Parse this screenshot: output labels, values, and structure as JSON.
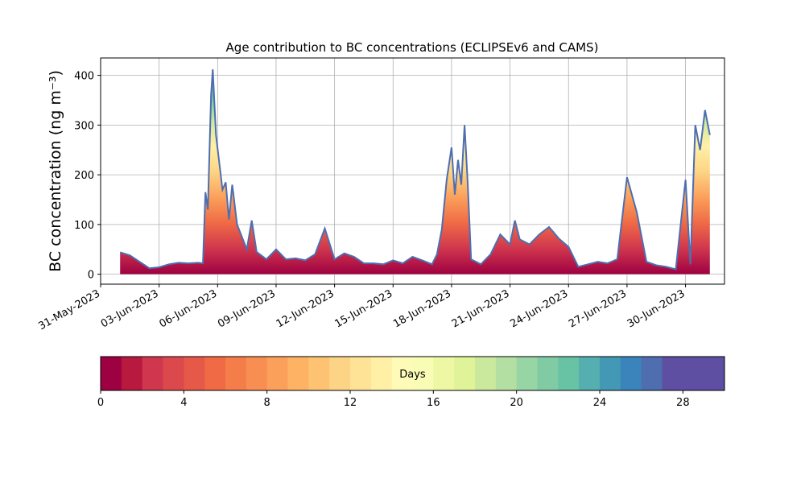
{
  "chart_data": {
    "type": "area",
    "title": "Age contribution to BC concentrations (ECLIPSEv6 and CAMS)",
    "ylabel": "BC concentration (ng m⁻³)",
    "xlabel": "",
    "x_start": "2023-06-01",
    "x_end": "2023-07-01",
    "xlim": [
      "2023-05-31",
      "2023-07-02"
    ],
    "ylim": [
      -20,
      435
    ],
    "y_ticks": [
      0,
      100,
      200,
      300,
      400
    ],
    "x_tick_labels": [
      "31-May-2023",
      "03-Jun-2023",
      "06-Jun-2023",
      "09-Jun-2023",
      "12-Jun-2023",
      "15-Jun-2023",
      "18-Jun-2023",
      "21-Jun-2023",
      "24-Jun-2023",
      "27-Jun-2023",
      "30-Jun-2023"
    ],
    "x_tick_dates": [
      "2023-05-31",
      "2023-06-03",
      "2023-06-06",
      "2023-06-09",
      "2023-06-12",
      "2023-06-15",
      "2023-06-18",
      "2023-06-21",
      "2023-06-24",
      "2023-06-27",
      "2023-06-30"
    ],
    "grid": true,
    "total_series": [
      [
        "2023-06-01",
        44
      ],
      [
        "2023-06-01T12",
        38
      ],
      [
        "2023-06-02",
        25
      ],
      [
        "2023-06-02T12",
        12
      ],
      [
        "2023-06-03",
        14
      ],
      [
        "2023-06-03T12",
        20
      ],
      [
        "2023-06-04",
        23
      ],
      [
        "2023-06-04T12",
        22
      ],
      [
        "2023-06-05",
        23
      ],
      [
        "2023-06-05T06",
        22
      ],
      [
        "2023-06-05T09",
        165
      ],
      [
        "2023-06-05T12",
        130
      ],
      [
        "2023-06-05T16",
        360
      ],
      [
        "2023-06-05T18",
        412
      ],
      [
        "2023-06-05T22",
        280
      ],
      [
        "2023-06-06T06",
        170
      ],
      [
        "2023-06-06T10",
        185
      ],
      [
        "2023-06-06T14",
        110
      ],
      [
        "2023-06-06T18",
        180
      ],
      [
        "2023-06-07",
        100
      ],
      [
        "2023-06-07T12",
        50
      ],
      [
        "2023-06-07T18",
        108
      ],
      [
        "2023-06-08",
        45
      ],
      [
        "2023-06-08T12",
        30
      ],
      [
        "2023-06-09",
        50
      ],
      [
        "2023-06-09T12",
        30
      ],
      [
        "2023-06-10",
        32
      ],
      [
        "2023-06-10T12",
        28
      ],
      [
        "2023-06-11",
        40
      ],
      [
        "2023-06-11T12",
        92
      ],
      [
        "2023-06-12",
        30
      ],
      [
        "2023-06-12T12",
        42
      ],
      [
        "2023-06-13",
        35
      ],
      [
        "2023-06-13T12",
        22
      ],
      [
        "2023-06-14",
        22
      ],
      [
        "2023-06-14T12",
        20
      ],
      [
        "2023-06-15",
        28
      ],
      [
        "2023-06-15T12",
        22
      ],
      [
        "2023-06-16",
        35
      ],
      [
        "2023-06-16T12",
        28
      ],
      [
        "2023-06-17",
        20
      ],
      [
        "2023-06-17T06",
        40
      ],
      [
        "2023-06-17T12",
        90
      ],
      [
        "2023-06-17T18",
        190
      ],
      [
        "2023-06-18",
        255
      ],
      [
        "2023-06-18T04",
        160
      ],
      [
        "2023-06-18T08",
        230
      ],
      [
        "2023-06-18T12",
        180
      ],
      [
        "2023-06-18T16",
        300
      ],
      [
        "2023-06-18T20",
        180
      ],
      [
        "2023-06-19",
        30
      ],
      [
        "2023-06-19T12",
        20
      ],
      [
        "2023-06-20",
        40
      ],
      [
        "2023-06-20T12",
        80
      ],
      [
        "2023-06-21",
        60
      ],
      [
        "2023-06-21T06",
        108
      ],
      [
        "2023-06-21T12",
        70
      ],
      [
        "2023-06-22",
        60
      ],
      [
        "2023-06-22T12",
        80
      ],
      [
        "2023-06-23",
        95
      ],
      [
        "2023-06-23T12",
        72
      ],
      [
        "2023-06-24",
        55
      ],
      [
        "2023-06-24T12",
        15
      ],
      [
        "2023-06-25",
        20
      ],
      [
        "2023-06-25T12",
        25
      ],
      [
        "2023-06-26",
        22
      ],
      [
        "2023-06-26T12",
        30
      ],
      [
        "2023-06-27",
        195
      ],
      [
        "2023-06-27T12",
        125
      ],
      [
        "2023-06-28",
        25
      ],
      [
        "2023-06-28T12",
        18
      ],
      [
        "2023-06-29",
        15
      ],
      [
        "2023-06-29T12",
        10
      ],
      [
        "2023-06-30",
        190
      ],
      [
        "2023-06-30T06",
        20
      ],
      [
        "2023-06-30T12",
        300
      ],
      [
        "2023-06-30T18",
        250
      ],
      [
        "2023-07-01",
        330
      ],
      [
        "2023-07-01T06",
        280
      ]
    ],
    "colorbar": {
      "label": "Days",
      "min": 0,
      "max": 30,
      "ticks": [
        0,
        4,
        8,
        12,
        16,
        20,
        24,
        28
      ],
      "colors": [
        "#9e0142",
        "#b8193f",
        "#d0364e",
        "#dc494c",
        "#e65848",
        "#ef6a45",
        "#f47d4a",
        "#f98e52",
        "#fba05b",
        "#fdb264",
        "#fdc373",
        "#fdd485",
        "#fee295",
        "#fff0a6",
        "#fefbb8",
        "#f8fcb4",
        "#eef8a4",
        "#e1f399",
        "#cbe99d",
        "#b3e0a2",
        "#98d5a4",
        "#80cba4",
        "#68c2a4",
        "#55aeaf",
        "#4298b5",
        "#3a84bb",
        "#4e6eb0",
        "#5e4fa2",
        "#5e4fa2",
        "#5e4fa2"
      ]
    }
  }
}
